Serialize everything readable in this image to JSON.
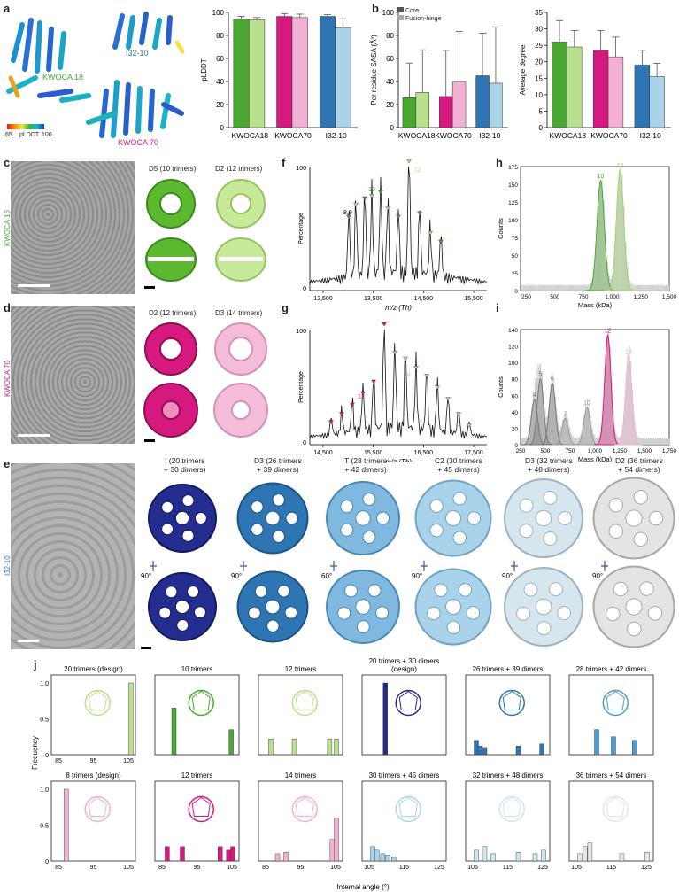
{
  "panels": {
    "a": "a",
    "b": "b",
    "c": "c",
    "d": "d",
    "e": "e",
    "f": "f",
    "g": "g",
    "h": "h",
    "i": "i",
    "j": "j"
  },
  "panel_a": {
    "labels": {
      "kwoca18": "KWOCA 18",
      "i3210": "I32-10",
      "kwoca70": "KWOCA 70"
    },
    "colorbar": {
      "min": "65",
      "name": "pLDDT",
      "max": "100"
    }
  },
  "legend_b": {
    "core": "Core",
    "fusion": "Fusion-hinge"
  },
  "rows": {
    "c": "KWOCA 18",
    "d": "KWOCA 70",
    "e": "I32-10"
  },
  "maps_c": {
    "left": "D5 (10 trimers)",
    "right": "D2 (12 trimers)"
  },
  "maps_d": {
    "left": "D2 (12 trimers)",
    "right": "D3 (14 trimers)"
  },
  "maps_e": [
    "I (20 trimers\n+ 30 dimers)",
    "D3 (26 trimers\n+ 39 dimers)",
    "T (28 trimers\n+ 42 dimers)",
    "C2 (30 trimers\n+ 45 dimers)",
    "D3 (32 trimers\n+ 48 dimers)",
    "D2 (36 trimers\n+ 54 dimers)"
  ],
  "rotations": [
    "90°",
    "90°",
    "60°",
    "90°",
    "90°",
    "90°"
  ],
  "colors": {
    "green_dark": "#4aa832",
    "green_light": "#b9e08c",
    "magenta_dark": "#d6197f",
    "magenta_light": "#f2b1d2",
    "blue_dark": "#2e75b3",
    "blue_light": "#a9d3ea",
    "navy": "#232c8f"
  },
  "chart_data": [
    {
      "type": "bar",
      "id": "a_plddt",
      "ylabel": "pLDDT",
      "ylim": [
        0,
        100
      ],
      "yticks": [
        "0",
        "20",
        "40",
        "60",
        "80",
        "100"
      ],
      "categories": [
        "KWOCA18",
        "KWOCA70",
        "I32-10"
      ],
      "series": [
        {
          "name": "Core",
          "values": [
            94,
            96.5,
            96.5
          ],
          "err": [
            2.5,
            2.5,
            1.5
          ]
        },
        {
          "name": "Fusion-hinge",
          "values": [
            93.5,
            95.5,
            86.5
          ],
          "err": [
            2,
            3,
            8
          ]
        }
      ]
    },
    {
      "type": "bar",
      "id": "b_sasa",
      "ylabel": "Per residue SASA (Å²)",
      "ylim": [
        0,
        100
      ],
      "yticks": [
        "0",
        "20",
        "40",
        "60",
        "80",
        "100"
      ],
      "categories": [
        "KWOCA18",
        "KWOCA70",
        "I32-10"
      ],
      "series": [
        {
          "name": "Core",
          "values": [
            26,
            27,
            45
          ],
          "err": [
            30,
            40,
            37
          ]
        },
        {
          "name": "Fusion-hinge",
          "values": [
            30.5,
            39.5,
            38.5
          ],
          "err": [
            37,
            44,
            49
          ]
        }
      ]
    },
    {
      "type": "bar",
      "id": "b_degree",
      "ylabel": "Average degree",
      "ylim": [
        0,
        35
      ],
      "yticks": [
        "0",
        "5",
        "10",
        "15",
        "20",
        "25",
        "30",
        "35"
      ],
      "categories": [
        "KWOCA18",
        "KWOCA70",
        "I32-10"
      ],
      "series": [
        {
          "name": "Core",
          "values": [
            26,
            23.5,
            19
          ],
          "err": [
            6.5,
            6,
            4.5
          ]
        },
        {
          "name": "Fusion-hinge",
          "values": [
            24.5,
            21.5,
            15.5
          ],
          "err": [
            5,
            6,
            4
          ]
        }
      ]
    },
    {
      "type": "line",
      "id": "f_ms",
      "ylabel": "Percentage",
      "xlabel": "m/z (Th)",
      "xticks": [
        "12,500",
        "13,500",
        "14,500",
        "15,500"
      ],
      "ymax_label": "100",
      "ytick0": "0",
      "peak_labels": [
        "8,9",
        "10",
        "12"
      ]
    },
    {
      "type": "line",
      "id": "g_ms",
      "ylabel": "Percentage",
      "xlabel": "m/z (Th)",
      "xticks": [
        "14,500",
        "15,500",
        "16,500",
        "17,500"
      ],
      "ymax_label": "100",
      "ytick0": "0",
      "peak_labels": [
        "12",
        "14"
      ]
    },
    {
      "type": "area",
      "id": "h_mass",
      "ylabel": "Counts",
      "xlabel": "Mass (kDa)",
      "xlim": [
        200,
        1500
      ],
      "ylim": [
        0,
        175
      ],
      "xticks": [
        "250",
        "500",
        "750",
        "1,000",
        "1,250",
        "1,500"
      ],
      "yticks": [
        "0",
        "25",
        "50",
        "75",
        "100",
        "125",
        "150",
        "175"
      ],
      "peaks": [
        {
          "label": "10",
          "center": 900,
          "height": 155
        },
        {
          "label": "12",
          "center": 1070,
          "height": 170
        }
      ]
    },
    {
      "type": "area",
      "id": "i_mass",
      "ylabel": "Counts",
      "xlabel": "Mass (kDa)",
      "xlim": [
        250,
        1750
      ],
      "ylim": [
        0,
        140
      ],
      "xticks": [
        "250",
        "500",
        "750",
        "1,000",
        "1,250",
        "1,500",
        "1,750"
      ],
      "yticks": [
        "0",
        "20",
        "40",
        "60",
        "80",
        "100",
        "120",
        "140"
      ],
      "peaks": [
        {
          "label": "4",
          "center": 390,
          "height": 55
        },
        {
          "label": "5",
          "center": 450,
          "height": 80
        },
        {
          "label": "6",
          "center": 570,
          "height": 75
        },
        {
          "label": "7",
          "center": 700,
          "height": 32
        },
        {
          "label": "10",
          "center": 920,
          "height": 45
        },
        {
          "label": "12",
          "center": 1130,
          "height": 133
        },
        {
          "label": "14",
          "center": 1340,
          "height": 107
        }
      ]
    },
    {
      "type": "bar",
      "id": "j_hist",
      "ylabel": "Frequency",
      "xlabel": "Internal angle (°)",
      "panels": [
        {
          "title": "20 trimers (design)",
          "xticks": [
            "85",
            "95",
            "105"
          ],
          "color": "#b9e08c"
        },
        {
          "title": "10 trimers",
          "xticks": [],
          "color": "#4aa832"
        },
        {
          "title": "12 trimers",
          "xticks": [],
          "color": "#b9e08c"
        },
        {
          "title": "20 trimers + 30 dimers\n(design)",
          "xticks": [],
          "color": "#232c8f"
        },
        {
          "title": "26 trimers + 39 dimers",
          "xticks": [],
          "color": "#2e75b3"
        },
        {
          "title": "28 trimers + 42 dimers",
          "xticks": [],
          "color": "#4f9bd3"
        },
        {
          "title": "8 trimers (design)",
          "xticks": [
            "85",
            "95",
            "105"
          ],
          "color": "#f2b1d2"
        },
        {
          "title": "12 trimers",
          "xticks": [
            "85",
            "95",
            "105"
          ],
          "color": "#d6197f"
        },
        {
          "title": "14 trimers",
          "xticks": [
            "85",
            "95",
            "105"
          ],
          "color": "#f2b1d2"
        },
        {
          "title": "30 trimers + 45 dimers",
          "xticks": [
            "105",
            "115",
            "125"
          ],
          "color": "#a9d3ea"
        },
        {
          "title": "32 trimers + 48 dimers",
          "xticks": [
            "105",
            "115",
            "125"
          ],
          "color": "#cde6f3"
        },
        {
          "title": "36 trimers + 54 dimers",
          "xticks": [
            "105",
            "115",
            "125"
          ],
          "color": "#e6e6e6"
        }
      ],
      "yticks": [
        "0",
        "0.5",
        "1.0"
      ]
    }
  ]
}
